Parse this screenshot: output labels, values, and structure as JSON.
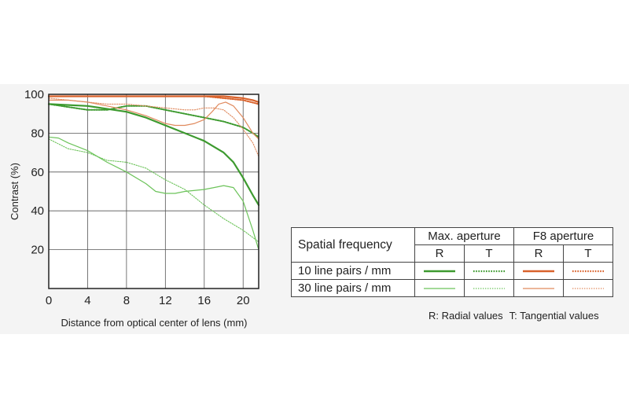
{
  "chart_data": {
    "type": "line",
    "xlabel": "Distance from optical center of lens (mm)",
    "ylabel": "Contrast (%)",
    "xlim": [
      0,
      21.6
    ],
    "ylim": [
      0,
      100
    ],
    "xticks": [
      "0",
      "4",
      "8",
      "12",
      "16",
      "20"
    ],
    "yticks": [
      "20",
      "40",
      "60",
      "80",
      "100"
    ],
    "grid": true,
    "colors": {
      "max_aperture": "#3d9a2f",
      "f8_aperture": "#d9622b"
    },
    "series": [
      {
        "name": "10 line pairs / mm, Max. aperture, R",
        "x": [
          0,
          4,
          8,
          10,
          12,
          14,
          16,
          17,
          18,
          19,
          20,
          21,
          21.6
        ],
        "y": [
          95,
          94,
          91,
          88,
          84,
          80,
          76,
          73,
          70,
          65,
          57,
          48,
          43
        ]
      },
      {
        "name": "10 line pairs / mm, Max. aperture, T",
        "x": [
          0,
          4,
          6,
          8,
          10,
          12,
          14,
          16,
          18,
          20,
          21,
          21.6
        ],
        "y": [
          95,
          92,
          92,
          94,
          94,
          92,
          90,
          88,
          86,
          83,
          80,
          78
        ]
      },
      {
        "name": "30 line pairs / mm, Max. aperture, R",
        "x": [
          0,
          1,
          2,
          4,
          6,
          8,
          10,
          11,
          12,
          13,
          14,
          16,
          17,
          18,
          19,
          20,
          21,
          21.6
        ],
        "y": [
          78,
          77.5,
          75,
          71,
          65,
          60,
          54,
          50,
          49,
          49,
          50,
          51,
          52,
          53,
          52,
          45,
          30,
          20
        ]
      },
      {
        "name": "30 line pairs / mm, Max. aperture, T",
        "x": [
          0,
          2,
          4,
          6,
          8,
          10,
          12,
          14,
          16,
          18,
          20,
          21.6
        ],
        "y": [
          77,
          72,
          70,
          66,
          65,
          62,
          56,
          51,
          43,
          36,
          30,
          24
        ]
      },
      {
        "name": "10 line pairs / mm, F8 aperture, R",
        "x": [
          0,
          4,
          8,
          12,
          16,
          18,
          20,
          21,
          21.6
        ],
        "y": [
          99,
          99,
          99,
          99,
          99,
          99,
          98,
          97,
          96
        ]
      },
      {
        "name": "10 line pairs / mm, F8 aperture, T",
        "x": [
          0,
          4,
          8,
          12,
          16,
          18,
          20,
          21.6
        ],
        "y": [
          99,
          99,
          99,
          99,
          99,
          98,
          97,
          95
        ]
      },
      {
        "name": "30 line pairs / mm, F8 aperture, R",
        "x": [
          0,
          2,
          4,
          6,
          8,
          10,
          12,
          13,
          14,
          15,
          16,
          16.8,
          17.5,
          18.2,
          19,
          20,
          21,
          21.6
        ],
        "y": [
          97,
          97,
          96,
          94,
          92,
          89,
          85,
          84,
          84,
          85,
          87,
          91,
          95,
          96,
          94,
          88,
          80,
          77
        ]
      },
      {
        "name": "30 line pairs / mm, F8 aperture, T",
        "x": [
          0,
          2,
          4,
          6,
          8,
          10,
          12,
          14,
          15,
          16,
          17,
          18,
          19,
          20,
          21,
          21.6
        ],
        "y": [
          98,
          97,
          96,
          95,
          95,
          94,
          93,
          92,
          92,
          93,
          93,
          92,
          88,
          82,
          75,
          68
        ]
      }
    ]
  },
  "legend": {
    "header": "Spatial frequency",
    "groups": [
      "Max. aperture",
      "F8 aperture"
    ],
    "sub": [
      "R",
      "T",
      "R",
      "T"
    ],
    "rows": [
      "10 line pairs / mm",
      "30 line pairs / mm"
    ]
  },
  "note": {
    "r": "R: Radial values",
    "t": "T: Tangential values"
  }
}
